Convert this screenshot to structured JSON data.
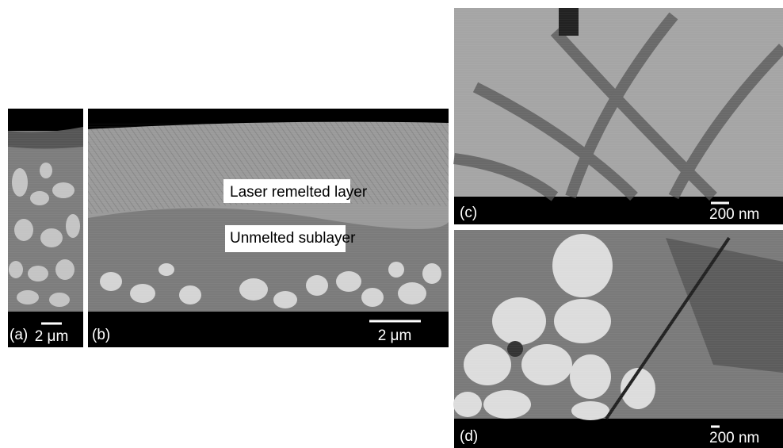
{
  "panels": [
    {
      "label": "(a)",
      "scale_bar": "2 μm"
    },
    {
      "label": "(b)",
      "scale_bar": "2 μm",
      "annotations": [
        "Laser remelted layer",
        "Unmelted sublayer"
      ]
    },
    {
      "label": "(c)",
      "scale_bar": "200 nm"
    },
    {
      "label": "(d)",
      "scale_bar": "200 nm"
    }
  ]
}
